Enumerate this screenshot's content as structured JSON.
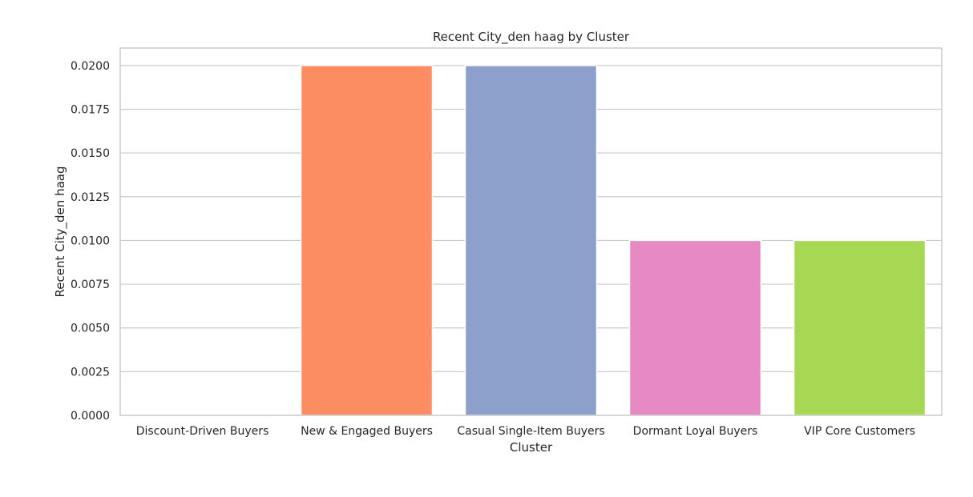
{
  "chart_data": {
    "type": "bar",
    "title": "Recent City_den haag by Cluster",
    "xlabel": "Cluster",
    "ylabel": "Recent City_den haag",
    "categories": [
      "Discount-Driven Buyers",
      "New & Engaged Buyers",
      "Casual Single-Item Buyers",
      "Dormant Loyal Buyers",
      "VIP Core Customers"
    ],
    "values": [
      0.0,
      0.02,
      0.02,
      0.01,
      0.01
    ],
    "colors": [
      "#66c2a5",
      "#fc8d62",
      "#8da0cb",
      "#e78ac3",
      "#a6d854"
    ],
    "ylim": [
      0,
      0.02
    ],
    "yticks": [
      "0.0000",
      "0.0025",
      "0.0050",
      "0.0075",
      "0.0100",
      "0.0125",
      "0.0150",
      "0.0175",
      "0.0200"
    ],
    "grid": true,
    "legend": "none"
  }
}
